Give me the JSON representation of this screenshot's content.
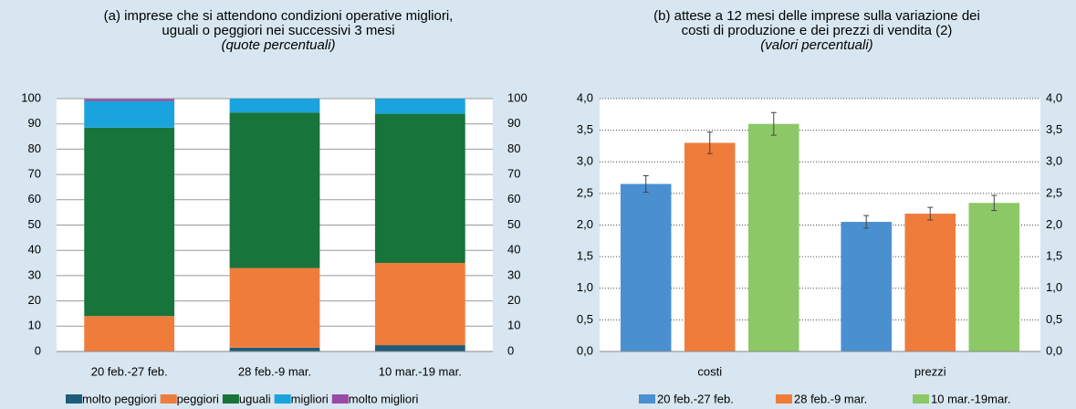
{
  "chart_data": [
    {
      "type": "stacked_bar",
      "title": [
        "(a) imprese che si attendono condizioni operative migliori,",
        "uguali o peggiori nei successivi 3 mesi"
      ],
      "subtitle": "(quote percentuali)",
      "categories": [
        "20 feb.-27 feb.",
        "28 feb.-9 mar.",
        "10 mar.-19 mar."
      ],
      "series": [
        {
          "name": "molto peggiori",
          "color": "#1f5c7a",
          "values": [
            0,
            1.5,
            2.5
          ]
        },
        {
          "name": "peggiori",
          "color": "#f07c3c",
          "values": [
            14,
            31.5,
            32.5
          ]
        },
        {
          "name": "uguali",
          "color": "#17743a",
          "values": [
            74.5,
            61.5,
            59
          ]
        },
        {
          "name": "migliori",
          "color": "#1aa3dc",
          "values": [
            10.5,
            5.5,
            6
          ]
        },
        {
          "name": "molto migliori",
          "color": "#9a48a8",
          "values": [
            0.8,
            0,
            0
          ]
        }
      ],
      "ylim": [
        0,
        100
      ],
      "yticks": [
        0,
        10,
        20,
        30,
        40,
        50,
        60,
        70,
        80,
        90,
        100
      ],
      "y2lim": [
        0,
        100
      ],
      "y2ticks": [
        0,
        10,
        20,
        30,
        40,
        50,
        60,
        70,
        80,
        90,
        100
      ],
      "grid": true,
      "legend": "bottom"
    },
    {
      "type": "bar",
      "title": [
        "(b) attese a 12 mesi delle imprese sulla variazione dei",
        "costi di produzione e dei prezzi di vendita (2)"
      ],
      "subtitle": "(valori percentuali)",
      "categories": [
        "costi",
        "prezzi"
      ],
      "series": [
        {
          "name": "20 feb.-27 feb.",
          "color": "#4a90d0",
          "values": [
            2.65,
            2.05
          ],
          "errors": [
            0.13,
            0.1
          ]
        },
        {
          "name": "28 feb.-9 mar.",
          "color": "#f07c3c",
          "values": [
            3.3,
            2.18
          ],
          "errors": [
            0.17,
            0.1
          ]
        },
        {
          "name": "10 mar.-19mar.",
          "color": "#8cc866",
          "values": [
            3.6,
            2.35
          ],
          "errors": [
            0.18,
            0.12
          ]
        }
      ],
      "ylim": [
        0,
        4
      ],
      "yticks": [
        {
          "value": 0,
          "label": "0,0"
        },
        {
          "value": 0.5,
          "label": "0,5"
        },
        {
          "value": 1,
          "label": "1,0"
        },
        {
          "value": 1.5,
          "label": "1,5"
        },
        {
          "value": 2,
          "label": "2,0"
        },
        {
          "value": 2.5,
          "label": "2,5"
        },
        {
          "value": 3,
          "label": "3,0"
        },
        {
          "value": 3.5,
          "label": "3,5"
        },
        {
          "value": 4,
          "label": "4,0"
        }
      ],
      "y2lim": [
        0,
        4
      ],
      "y2ticks": [
        {
          "value": 0,
          "label": "0,0"
        },
        {
          "value": 0.5,
          "label": "0,5"
        },
        {
          "value": 1,
          "label": "1,0"
        },
        {
          "value": 1.5,
          "label": "1,5"
        },
        {
          "value": 2,
          "label": "2,0"
        },
        {
          "value": 2.5,
          "label": "2,5"
        },
        {
          "value": 3,
          "label": "3,0"
        },
        {
          "value": 3.5,
          "label": "3,5"
        },
        {
          "value": 4,
          "label": "4,0"
        }
      ],
      "grid": true,
      "legend": "bottom"
    }
  ]
}
